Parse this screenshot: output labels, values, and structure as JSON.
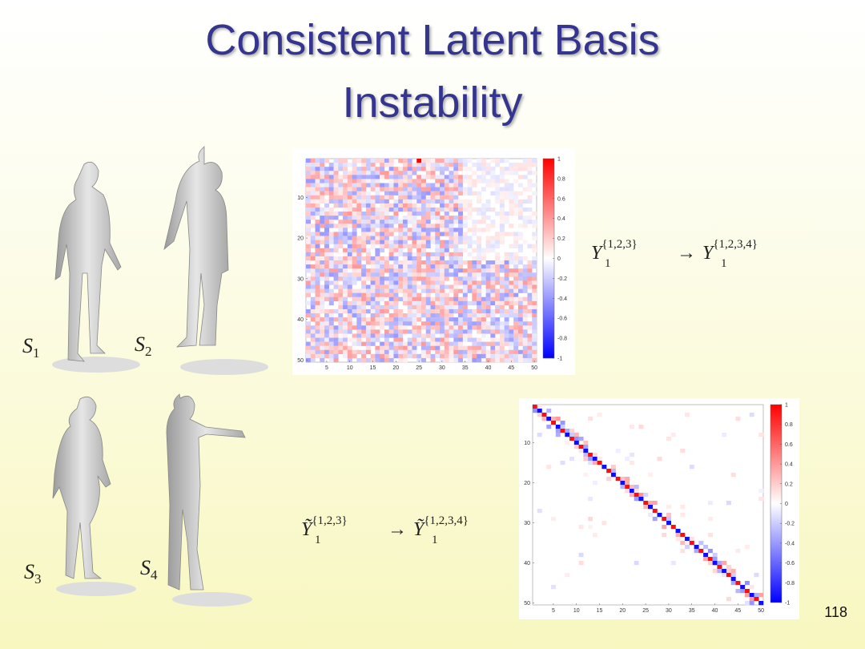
{
  "title_lines": [
    "Consistent Latent Basis",
    "Instability"
  ],
  "shapes": [
    {
      "name": "S",
      "subscript": "1"
    },
    {
      "name": "S",
      "subscript": "2"
    },
    {
      "name": "S",
      "subscript": "3"
    },
    {
      "name": "S",
      "subscript": "4"
    }
  ],
  "formulas": [
    {
      "base": "Y",
      "subscript": "1",
      "superscript": "{1,2,3}",
      "arrow": "→",
      "target_superscript": "{1,2,3,4}"
    },
    {
      "base": "Ỹ",
      "subscript": "1",
      "superscript": "{1,2,3}",
      "arrow": "→",
      "target_superscript": "{1,2,3,4}"
    }
  ],
  "heatmaps": [
    {
      "xticks": [
        5,
        10,
        15,
        20,
        25,
        30,
        35,
        40,
        45,
        50
      ],
      "yticks": [
        10,
        20,
        30,
        40,
        50
      ],
      "colorbar_ticks": [
        1,
        0.8,
        0.6,
        0.4,
        0.2,
        0,
        -0.2,
        -0.4,
        -0.6,
        -0.8,
        -1
      ]
    },
    {
      "xticks": [
        5,
        10,
        15,
        20,
        25,
        30,
        35,
        40,
        45,
        50
      ],
      "yticks": [
        10,
        20,
        30,
        40,
        50
      ],
      "colorbar_ticks": [
        1,
        0.8,
        0.6,
        0.4,
        0.2,
        0,
        -0.2,
        -0.4,
        -0.6,
        -0.8,
        -1
      ]
    }
  ],
  "page_number": "118"
}
